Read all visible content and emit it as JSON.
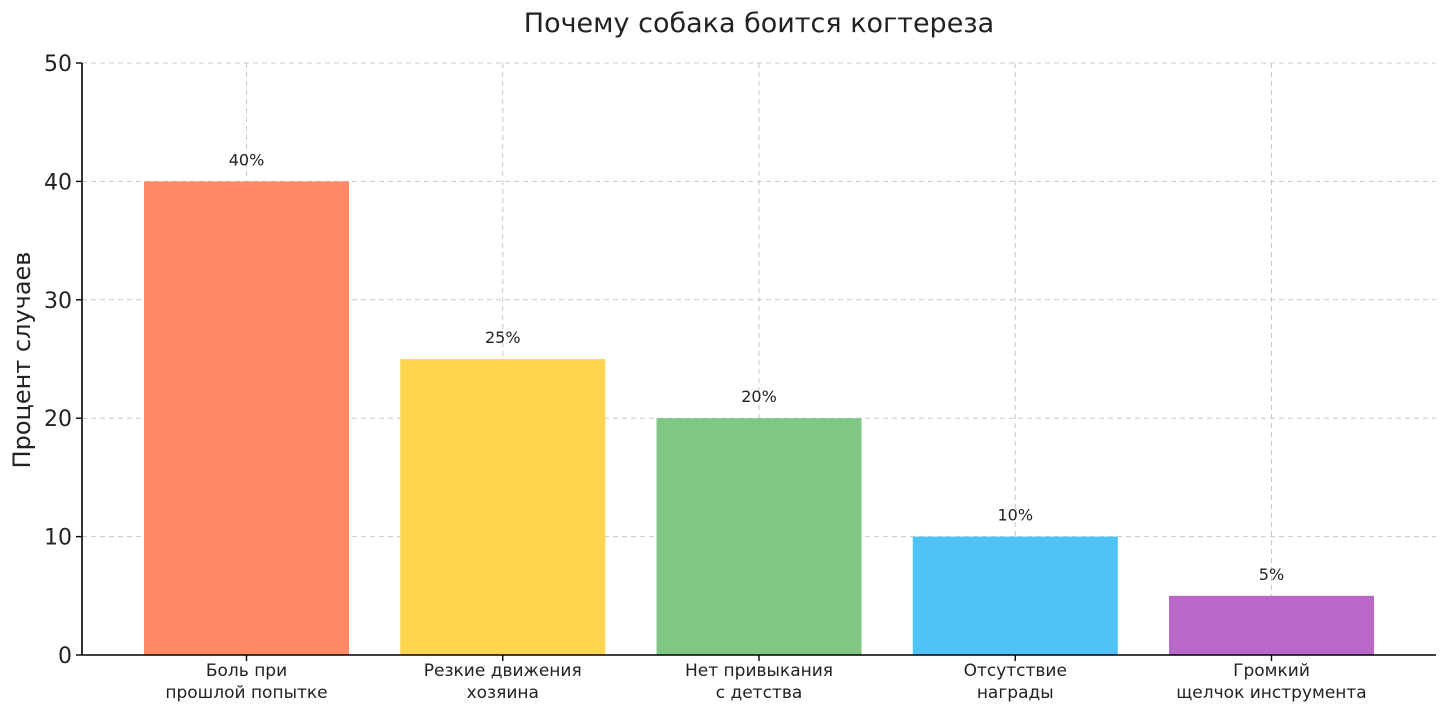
{
  "chart_data": {
    "type": "bar",
    "title": "Почему собака боится когтереза",
    "xlabel": "",
    "ylabel": "Процент случаев",
    "ylim": [
      0,
      50
    ],
    "yticks": [
      0,
      10,
      20,
      30,
      40,
      50
    ],
    "grid": true,
    "categories": [
      [
        "Боль при",
        "прошлой попытке"
      ],
      [
        "Резкие движения",
        "хозяина"
      ],
      [
        "Нет привыкания",
        "с детства"
      ],
      [
        "Отсутствие",
        "награды"
      ],
      [
        "Громкий",
        "щелчок инструмента"
      ]
    ],
    "values": [
      40,
      25,
      20,
      10,
      5
    ],
    "data_labels": [
      "40%",
      "25%",
      "20%",
      "10%",
      "5%"
    ],
    "colors": [
      "#FF8A65",
      "#FFD54F",
      "#81C784",
      "#4FC3F7",
      "#BA68C8"
    ]
  }
}
